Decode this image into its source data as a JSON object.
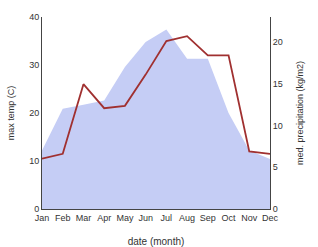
{
  "chart_data": {
    "type": "line",
    "categories": [
      "Jan",
      "Feb",
      "Mar",
      "Apr",
      "May",
      "Jun",
      "Jul",
      "Aug",
      "Sep",
      "Oct",
      "Nov",
      "Dec"
    ],
    "series": [
      {
        "type": "area",
        "axis": "y2",
        "color": "#c5cdf5",
        "values": [
          7.0,
          12.0,
          12.5,
          13.0,
          17.0,
          20.0,
          21.5,
          18.0,
          18.0,
          11.5,
          7.0,
          6.0
        ]
      },
      {
        "type": "line",
        "color": "#a03030",
        "values": [
          10.5,
          11.5,
          26.0,
          21.0,
          21.5,
          28.0,
          35.0,
          36.0,
          32.0,
          32.0,
          12.0,
          11.5
        ]
      }
    ],
    "xlabel": "date (month)",
    "ylabel": "max temp (C)",
    "y2label": "med. precipitation (kg/m2)",
    "ylim": [
      0,
      40
    ],
    "yticks": [
      0,
      10,
      20,
      30,
      40
    ],
    "y2lim": [
      0,
      23
    ],
    "y2ticks": [
      0,
      5,
      10,
      15,
      20
    ],
    "grid": false,
    "legend": false
  }
}
